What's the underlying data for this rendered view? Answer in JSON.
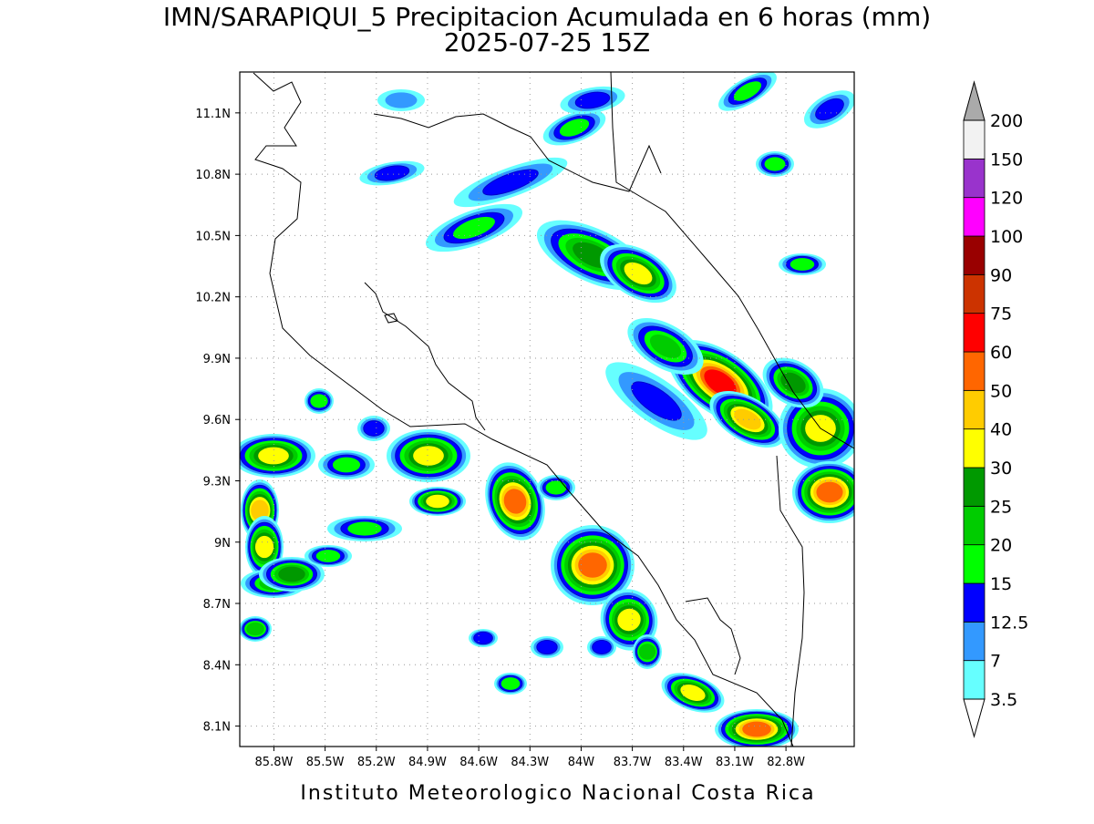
{
  "map": {
    "title": "IMN/SARAPIQUI_5 Precipitacion Acumulada en 6 horas (mm)",
    "subtitle": "2025-07-25 15Z",
    "footer": "Instituto Meteorologico Nacional Costa Rica",
    "xlim": [
      -86.0,
      -82.4
    ],
    "ylim": [
      8.0,
      11.3
    ],
    "grid": true,
    "xticks": [
      {
        "value": -85.8,
        "label": "85.8W"
      },
      {
        "value": -85.5,
        "label": "85.5W"
      },
      {
        "value": -85.2,
        "label": "85.2W"
      },
      {
        "value": -84.9,
        "label": "84.9W"
      },
      {
        "value": -84.6,
        "label": "84.6W"
      },
      {
        "value": -84.3,
        "label": "84.3W"
      },
      {
        "value": -84.0,
        "label": "84W"
      },
      {
        "value": -83.7,
        "label": "83.7W"
      },
      {
        "value": -83.4,
        "label": "83.4W"
      },
      {
        "value": -83.1,
        "label": "83.1W"
      },
      {
        "value": -82.8,
        "label": "82.8W"
      }
    ],
    "yticks": [
      {
        "value": 8.1,
        "label": "8.1N"
      },
      {
        "value": 8.4,
        "label": "8.4N"
      },
      {
        "value": 8.7,
        "label": "8.7N"
      },
      {
        "value": 9.0,
        "label": "9N"
      },
      {
        "value": 9.3,
        "label": "9.3N"
      },
      {
        "value": 9.6,
        "label": "9.6N"
      },
      {
        "value": 9.9,
        "label": "9.9N"
      },
      {
        "value": 10.2,
        "label": "10.2N"
      },
      {
        "value": 10.5,
        "label": "10.5N"
      },
      {
        "value": 10.8,
        "label": "10.8N"
      },
      {
        "value": 11.1,
        "label": "11.1N"
      }
    ],
    "colorbar": {
      "levels": [
        3.5,
        7,
        12.5,
        15,
        20,
        25,
        30,
        40,
        50,
        60,
        75,
        90,
        100,
        120,
        150,
        200
      ],
      "colors": [
        "#66ffff",
        "#3399ff",
        "#0000ff",
        "#00ff00",
        "#00cc00",
        "#009900",
        "#ffff00",
        "#ffcc00",
        "#ff6600",
        "#ff0000",
        "#cc3300",
        "#990000",
        "#ff00ff",
        "#9933cc",
        "#f2f2f2"
      ],
      "under_color": "#ffffff",
      "over_color": "#aaaaaa"
    }
  }
}
